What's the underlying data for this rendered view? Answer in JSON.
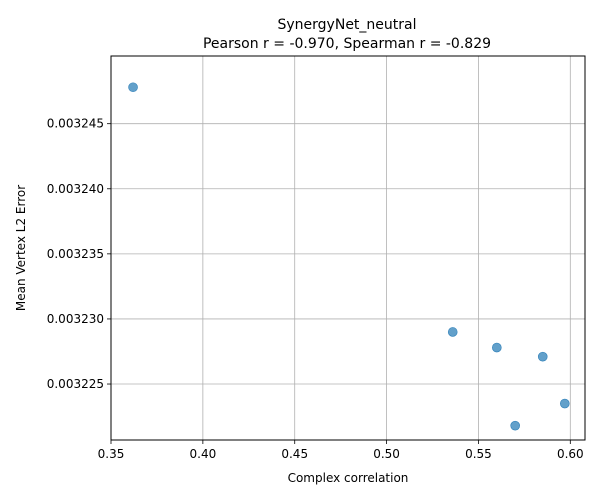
{
  "chart_data": {
    "type": "scatter",
    "title": "SynergyNet_neutral",
    "subtitle": "Pearson r = -0.970, Spearman r = -0.829",
    "xlabel": "Complex correlation",
    "ylabel": "Mean Vertex L2 Error",
    "xlim": [
      0.35,
      0.608
    ],
    "ylim": [
      0.0032207,
      0.0032502
    ],
    "xticks": [
      0.35,
      0.4,
      0.45,
      0.5,
      0.55,
      0.6
    ],
    "xtick_labels": [
      "0.35",
      "0.40",
      "0.45",
      "0.50",
      "0.55",
      "0.60"
    ],
    "yticks": [
      0.003225,
      0.00323,
      0.003235,
      0.00324,
      0.003245
    ],
    "ytick_labels": [
      "0.003225",
      "0.003230",
      "0.003235",
      "0.003240",
      "0.003245"
    ],
    "grid": true,
    "points": [
      {
        "x": 0.362,
        "y": 0.0032478
      },
      {
        "x": 0.536,
        "y": 0.003229
      },
      {
        "x": 0.56,
        "y": 0.0032278
      },
      {
        "x": 0.585,
        "y": 0.0032271
      },
      {
        "x": 0.597,
        "y": 0.0032235
      },
      {
        "x": 0.57,
        "y": 0.0032218
      }
    ],
    "marker_color": "#1f77b4"
  }
}
